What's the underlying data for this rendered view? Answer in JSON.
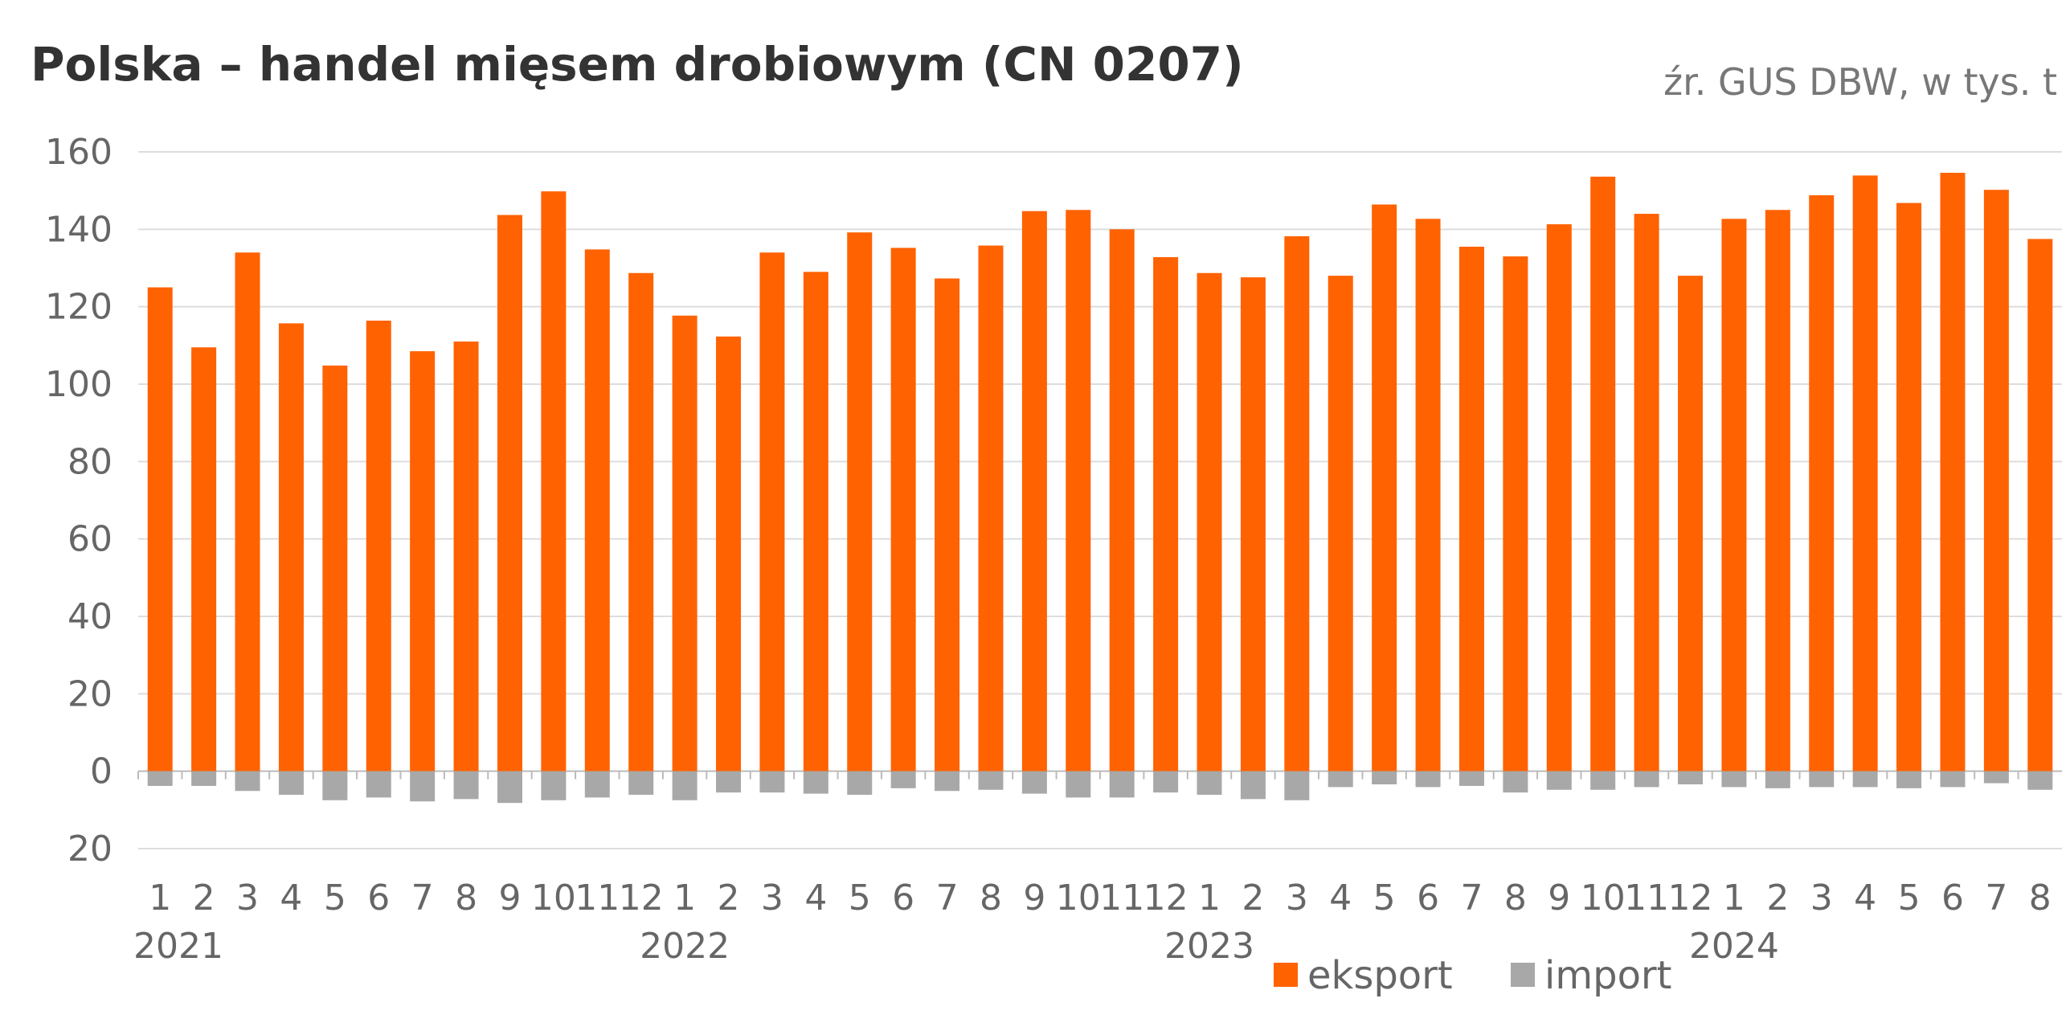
{
  "chart_data": {
    "type": "bar",
    "title": "Polska – handel mięsem drobiowym (CN 0207)",
    "source": "źr. GUS DBW, w tys. t",
    "xlabel": "",
    "ylabel": "",
    "ylim": [
      -20,
      160
    ],
    "yticks": [
      160,
      140,
      120,
      100,
      80,
      60,
      40,
      20,
      0,
      -20
    ],
    "ytick_labels": [
      "160",
      "140",
      "120",
      "100",
      "80",
      "60",
      "40",
      "20",
      "0",
      "20"
    ],
    "grid": true,
    "legend_position": "bottom-right",
    "categories": [
      "1",
      "2",
      "3",
      "4",
      "5",
      "6",
      "7",
      "8",
      "9",
      "10",
      "11",
      "12",
      "1",
      "2",
      "3",
      "4",
      "5",
      "6",
      "7",
      "8",
      "9",
      "10",
      "11",
      "12",
      "1",
      "2",
      "3",
      "4",
      "5",
      "6",
      "7",
      "8",
      "9",
      "10",
      "11",
      "12",
      "1",
      "2",
      "3",
      "4",
      "5",
      "6",
      "7",
      "8"
    ],
    "years": [
      {
        "label": "2021",
        "start": 0
      },
      {
        "label": "2022",
        "start": 12
      },
      {
        "label": "2023",
        "start": 24
      },
      {
        "label": "2024",
        "start": 36
      }
    ],
    "series": [
      {
        "name": "eksport",
        "color": "#FF6200",
        "values": [
          125,
          109.5,
          134,
          115.7,
          104.8,
          116.4,
          108.5,
          111,
          143.7,
          149.8,
          134.8,
          128.7,
          117.7,
          112.3,
          134,
          129,
          139.2,
          135.2,
          127.3,
          135.8,
          144.7,
          145,
          140,
          132.8,
          128.7,
          127.6,
          138.2,
          128,
          146.4,
          142.7,
          135.5,
          133,
          141.3,
          153.6,
          144,
          128,
          142.7,
          145,
          148.8,
          153.9,
          146.8,
          154.6,
          150.2,
          137.5
        ]
      },
      {
        "name": "import",
        "color": "#A8A8A8",
        "values": [
          -3.8,
          -3.8,
          -5.1,
          -6.1,
          -7.5,
          -6.8,
          -7.8,
          -7.2,
          -8.2,
          -7.5,
          -6.8,
          -6.1,
          -7.5,
          -5.5,
          -5.5,
          -5.8,
          -6.1,
          -4.4,
          -5.1,
          -4.8,
          -5.8,
          -6.8,
          -6.8,
          -5.5,
          -6.1,
          -7.2,
          -7.5,
          -4.1,
          -3.4,
          -4.1,
          -3.8,
          -5.5,
          -4.8,
          -4.8,
          -4.1,
          -3.4,
          -4.1,
          -4.4,
          -4.1,
          -4.1,
          -4.4,
          -4.1,
          -3.1,
          -4.8
        ]
      }
    ]
  }
}
